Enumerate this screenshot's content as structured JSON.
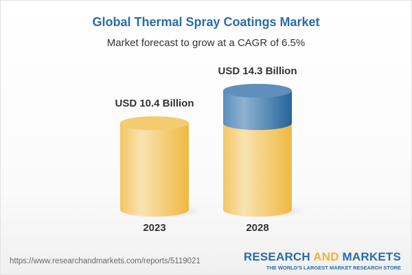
{
  "title": "Global Thermal Spray Coatings Market",
  "subtitle": "Market forecast to grow at a CAGR of 6.5%",
  "chart_data": {
    "type": "bar",
    "style": "3d-cylinder",
    "categories": [
      "2023",
      "2028"
    ],
    "values": [
      10.4,
      14.3
    ],
    "data_labels": [
      "USD 10.4 Billion",
      "USD 14.3 Billion"
    ],
    "colors": {
      "base": "#f2c35a",
      "growth": "#3f7bb0"
    }
  },
  "footer": {
    "url": "https://www.researchandmarkets.com/reports/5119021",
    "logo_part1": "RESEARCH ",
    "logo_part2": "AND",
    "logo_part3": " MARKETS",
    "tagline": "THE WORLD'S LARGEST MARKET RESEARCH STORE"
  }
}
